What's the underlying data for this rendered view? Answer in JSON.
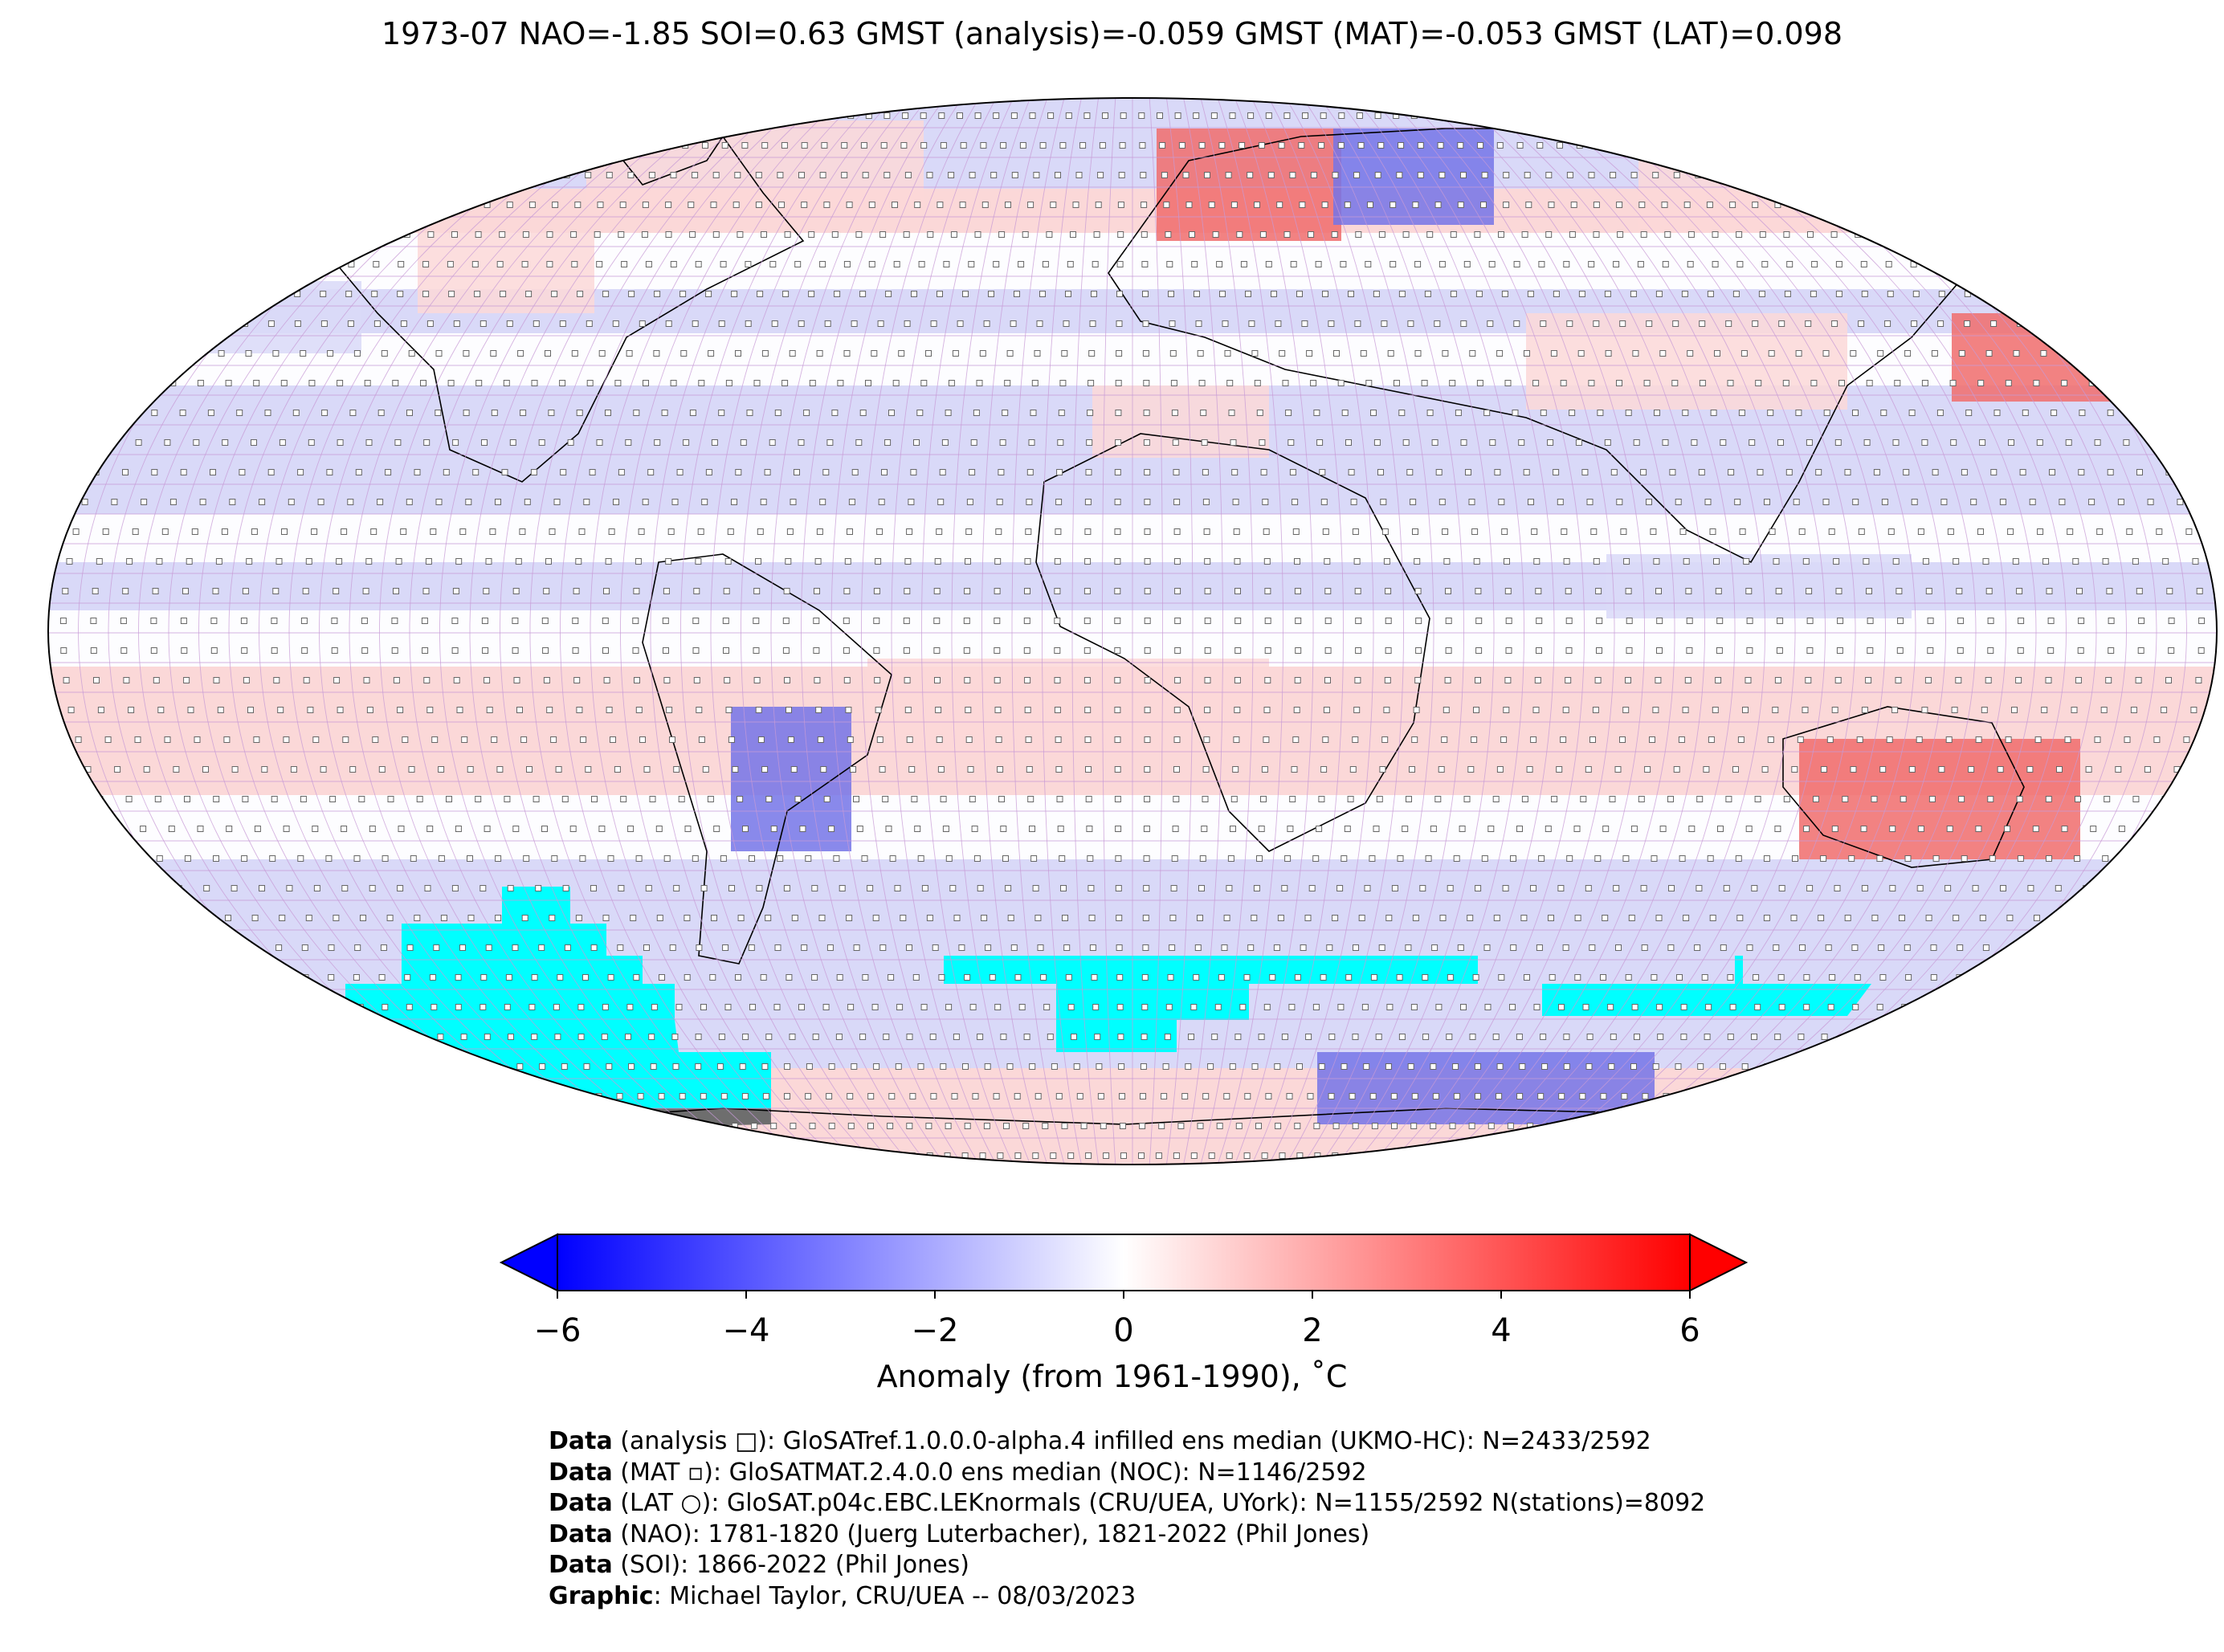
{
  "title": "1973-07 NAO=-1.85 SOI=0.63 GMST (analysis)=-0.059 GMST (MAT)=-0.053 GMST (LAT)=0.098",
  "map": {
    "projection": "Robinson",
    "variable": "temperature anomaly",
    "colors": {
      "ocean_grid_line": "#c79ad6",
      "coastline": "#000000",
      "station_marker_fill": "#ffffff",
      "station_marker_stroke": "#000000",
      "missing_ice": "#00ffff",
      "missing_land": "#6e6e6e",
      "strong_warm": "#f06c6c",
      "weak_warm": "#fbd8d8",
      "neutral": "#fdfdff",
      "weak_cold": "#d9d9f8",
      "strong_cold": "#7474e8"
    }
  },
  "colorbar": {
    "min": -6,
    "max": 6,
    "ticks": [
      "−6",
      "−4",
      "−2",
      "0",
      "2",
      "4",
      "6"
    ],
    "label": "Anomaly (from 1961-1990), ˚C",
    "cmap_low": "#0000ff",
    "cmap_mid": "#ffffff",
    "cmap_high": "#ff0000",
    "extend": "both"
  },
  "credits": [
    {
      "bold": "Data",
      "text": " (analysis □): GloSATref.1.0.0.0-alpha.4 infilled ens median (UKMO-HC): N=2433/2592"
    },
    {
      "bold": "Data",
      "text": " (MAT ▫): GloSATMAT.2.4.0.0 ens median (NOC): N=1146/2592"
    },
    {
      "bold": "Data",
      "text": " (LAT ○): GloSAT.p04c.EBC.LEKnormals (CRU/UEA, UYork): N=1155/2592 N(stations)=8092"
    },
    {
      "bold": "Data",
      "text": " (NAO): 1781-1820 (Juerg Luterbacher), 1821-2022 (Phil Jones)"
    },
    {
      "bold": "Data",
      "text": " (SOI): 1866-2022 (Phil Jones)"
    },
    {
      "bold": "Graphic",
      "text": ": Michael Taylor, CRU/UEA -- 08/03/2023"
    }
  ]
}
